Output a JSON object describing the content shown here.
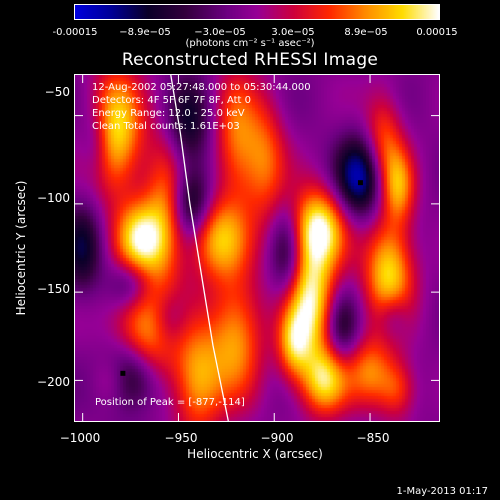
{
  "colorbar": {
    "tick_labels": [
      "-0.00015",
      "−8.9e−05",
      "−3.0e−05",
      "3.0e−05",
      "8.9e−05",
      "0.00015"
    ],
    "tick_values": [
      -0.00015,
      -8.9e-05,
      -3e-05,
      3e-05,
      8.9e-05,
      0.00015
    ],
    "units": "(photons cm⁻² s⁻¹ asec⁻²)",
    "range": [
      -0.00015,
      0.00015
    ]
  },
  "annotations": {
    "time": "12-Aug-2002 05:27:48.000 to 05:30:44.000",
    "detectors": "Detectors: 4F 5F 6F 7F 8F, Att 0",
    "energy": "Energy Range: 12.0 - 25.0 keV",
    "clean": "Clean     Total counts: 1.61E+03",
    "peak": "Position of Peak = [-877,-114]"
  },
  "footer": {
    "date": "1-May-2013 01:17"
  },
  "chart_data": {
    "type": "heatmap",
    "title": "Reconstructed RHESSI Image",
    "xlabel": "Heliocentric X (arcsec)",
    "ylabel": "Heliocentric Y (arcsec)",
    "xlim": [
      -1004,
      -814
    ],
    "ylim": [
      -223,
      -27
    ],
    "x_ticks": [
      -1000,
      -950,
      -900,
      -850
    ],
    "x_tick_labels": [
      "−1000",
      "−950",
      "−900",
      "−850"
    ],
    "y_ticks": [
      -50,
      -100,
      -150,
      -200
    ],
    "y_tick_labels": [
      "−50",
      "−100",
      "−150",
      "−200"
    ],
    "peak_position": [
      -877,
      -114
    ],
    "limb_curve": [
      [
        -954,
        -27
      ],
      [
        -949,
        -60
      ],
      [
        -944,
        -100
      ],
      [
        -938,
        -140
      ],
      [
        -932,
        -180
      ],
      [
        -924,
        -223
      ]
    ],
    "hot_sources": [
      {
        "x": -983,
        "y": -60,
        "sx": 10,
        "sy": 25,
        "a": 0.9
      },
      {
        "x": -970,
        "y": -120,
        "sx": 9,
        "sy": 15,
        "a": 0.85
      },
      {
        "x": -967,
        "y": -173,
        "sx": 12,
        "sy": 22,
        "a": 0.8
      },
      {
        "x": -985,
        "y": -200,
        "sx": 7,
        "sy": 10,
        "a": 0.3
      },
      {
        "x": -957,
        "y": -105,
        "sx": 8,
        "sy": 32,
        "a": 0.55
      },
      {
        "x": -930,
        "y": -120,
        "sx": 11,
        "sy": 16,
        "a": 0.7
      },
      {
        "x": -940,
        "y": -200,
        "sx": 9,
        "sy": 22,
        "a": 0.7
      },
      {
        "x": -920,
        "y": -175,
        "sx": 10,
        "sy": 25,
        "a": 0.7
      },
      {
        "x": -920,
        "y": -65,
        "sx": 8,
        "sy": 28,
        "a": 0.55
      },
      {
        "x": -905,
        "y": -75,
        "sx": 8,
        "sy": 25,
        "a": 0.55
      },
      {
        "x": -877,
        "y": -114,
        "sx": 10,
        "sy": 16,
        "a": 1.0
      },
      {
        "x": -881,
        "y": -155,
        "sx": 9,
        "sy": 22,
        "a": 0.95
      },
      {
        "x": -874,
        "y": -200,
        "sx": 9,
        "sy": 14,
        "a": 0.85
      },
      {
        "x": -890,
        "y": -180,
        "sx": 6,
        "sy": 14,
        "a": 0.6
      },
      {
        "x": -840,
        "y": -140,
        "sx": 9,
        "sy": 22,
        "a": 0.9
      },
      {
        "x": -843,
        "y": -65,
        "sx": 7,
        "sy": 20,
        "a": 0.55
      },
      {
        "x": -835,
        "y": -90,
        "sx": 6,
        "sy": 15,
        "a": 0.6
      },
      {
        "x": -850,
        "y": -195,
        "sx": 8,
        "sy": 14,
        "a": 0.55
      },
      {
        "x": -836,
        "y": -205,
        "sx": 7,
        "sy": 12,
        "a": 0.5
      }
    ],
    "cold_sources": [
      {
        "x": -975,
        "y": -197,
        "sx": 10,
        "sy": 14,
        "a": 0.9
      },
      {
        "x": -1000,
        "y": -125,
        "sx": 7,
        "sy": 18,
        "a": 0.55
      },
      {
        "x": -993,
        "y": -65,
        "sx": 6,
        "sy": 15,
        "a": 0.4
      },
      {
        "x": -975,
        "y": -145,
        "sx": 8,
        "sy": 10,
        "a": 0.5
      },
      {
        "x": -943,
        "y": -100,
        "sx": 7,
        "sy": 14,
        "a": 0.7
      },
      {
        "x": -945,
        "y": -55,
        "sx": 8,
        "sy": 18,
        "a": 0.55
      },
      {
        "x": -955,
        "y": -165,
        "sx": 7,
        "sy": 12,
        "a": 0.45
      },
      {
        "x": -855,
        "y": -85,
        "sx": 9,
        "sy": 16,
        "a": 0.9
      },
      {
        "x": -893,
        "y": -128,
        "sx": 6,
        "sy": 18,
        "a": 0.55
      },
      {
        "x": -865,
        "y": -170,
        "sx": 6,
        "sy": 14,
        "a": 0.5
      },
      {
        "x": -838,
        "y": -163,
        "sx": 6,
        "sy": 10,
        "a": 0.45
      }
    ],
    "markers": [
      [
        -855,
        -88
      ],
      [
        -979,
        -196
      ]
    ]
  }
}
